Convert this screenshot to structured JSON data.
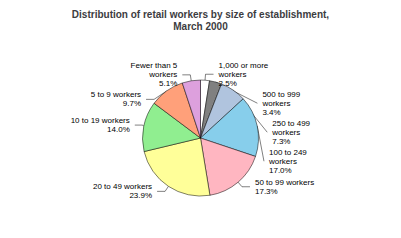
{
  "chart_data": {
    "type": "pie",
    "title": "Distribution of retail workers by size of establishment,\nMarch 2000",
    "categories": [
      "1,000 or more\nworkers\n2.5%",
      "500 to 999\nworkers\n3.4%",
      "250 to 499\nworkers\n7.3%",
      "100 to 249\nworkers\n17.0%",
      "50 to 99 workers\n17.3%",
      "20 to 49 workers\n23.9%",
      "10 to 19 workers\n14.0%",
      "5 to 9 workers\n9.7%",
      "Fewer than 5\nworkers\n5.1%"
    ],
    "values": [
      2.5,
      3.4,
      7.3,
      17.0,
      17.3,
      23.9,
      14.0,
      9.7,
      5.1
    ],
    "colors": [
      "#ffffff",
      "#808080",
      "#b0c4de",
      "#87ceeb",
      "#ffb6c1",
      "#ffff99",
      "#90ee90",
      "#ffa07a",
      "#dda0dd"
    ]
  }
}
